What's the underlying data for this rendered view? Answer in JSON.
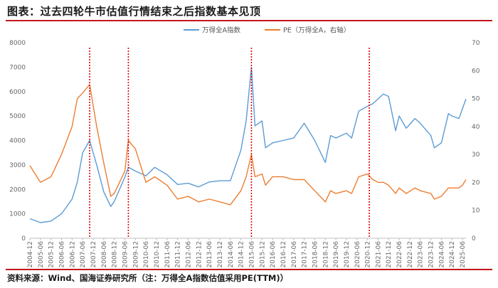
{
  "title": "图表：过去四轮牛市估值行情结束之后指数基本见顶",
  "source": "资料来源：Wind、国海证券研究所（注：万得全A指数估值采用PE(TTM)）",
  "chart_data": {
    "type": "line",
    "legend_position": "top-center",
    "grid": false,
    "series": [
      {
        "name": "万得全A指数",
        "axis": "left",
        "color": "#5b9bd5",
        "points": [
          [
            "2004-12",
            800
          ],
          [
            "2005-06",
            640
          ],
          [
            "2005-12",
            700
          ],
          [
            "2006-06",
            1000
          ],
          [
            "2006-12",
            1600
          ],
          [
            "2007-03",
            2300
          ],
          [
            "2007-06",
            3500
          ],
          [
            "2007-10",
            4000
          ],
          [
            "2008-02",
            3000
          ],
          [
            "2008-06",
            1900
          ],
          [
            "2008-10",
            1300
          ],
          [
            "2008-12",
            1500
          ],
          [
            "2009-06",
            2500
          ],
          [
            "2009-08",
            2900
          ],
          [
            "2009-12",
            2750
          ],
          [
            "2010-06",
            2550
          ],
          [
            "2010-11",
            2900
          ],
          [
            "2011-06",
            2600
          ],
          [
            "2011-12",
            2200
          ],
          [
            "2012-06",
            2250
          ],
          [
            "2012-12",
            2100
          ],
          [
            "2013-06",
            2300
          ],
          [
            "2013-12",
            2350
          ],
          [
            "2014-06",
            2350
          ],
          [
            "2014-12",
            3600
          ],
          [
            "2015-03",
            4800
          ],
          [
            "2015-06",
            7000
          ],
          [
            "2015-08",
            4600
          ],
          [
            "2015-12",
            4800
          ],
          [
            "2016-02",
            3700
          ],
          [
            "2016-06",
            3900
          ],
          [
            "2016-12",
            4000
          ],
          [
            "2017-06",
            4100
          ],
          [
            "2017-12",
            4700
          ],
          [
            "2018-06",
            4000
          ],
          [
            "2018-12",
            3100
          ],
          [
            "2019-03",
            4200
          ],
          [
            "2019-06",
            4100
          ],
          [
            "2019-12",
            4300
          ],
          [
            "2020-03",
            4100
          ],
          [
            "2020-07",
            5200
          ],
          [
            "2020-12",
            5400
          ],
          [
            "2021-03",
            5500
          ],
          [
            "2021-06",
            5700
          ],
          [
            "2021-09",
            5900
          ],
          [
            "2021-12",
            5800
          ],
          [
            "2022-04",
            4400
          ],
          [
            "2022-06",
            5000
          ],
          [
            "2022-10",
            4500
          ],
          [
            "2023-03",
            4900
          ],
          [
            "2023-06",
            4700
          ],
          [
            "2023-12",
            4200
          ],
          [
            "2024-02",
            3700
          ],
          [
            "2024-06",
            3900
          ],
          [
            "2024-10",
            5100
          ],
          [
            "2024-12",
            5000
          ],
          [
            "2025-04",
            4900
          ],
          [
            "2025-06",
            5300
          ],
          [
            "2025-08",
            5700
          ]
        ]
      },
      {
        "name": "PE（万得全A，右轴）",
        "axis": "right",
        "color": "#ed7d31",
        "points": [
          [
            "2004-12",
            26
          ],
          [
            "2005-06",
            20
          ],
          [
            "2005-12",
            22
          ],
          [
            "2006-06",
            30
          ],
          [
            "2006-12",
            40
          ],
          [
            "2007-03",
            50
          ],
          [
            "2007-06",
            52
          ],
          [
            "2007-10",
            55
          ],
          [
            "2008-02",
            40
          ],
          [
            "2008-06",
            27
          ],
          [
            "2008-10",
            15
          ],
          [
            "2008-12",
            16
          ],
          [
            "2009-06",
            24
          ],
          [
            "2009-08",
            35
          ],
          [
            "2009-12",
            32
          ],
          [
            "2010-06",
            20
          ],
          [
            "2010-11",
            22
          ],
          [
            "2011-06",
            19
          ],
          [
            "2011-12",
            14
          ],
          [
            "2012-06",
            15
          ],
          [
            "2012-12",
            13
          ],
          [
            "2013-06",
            14
          ],
          [
            "2013-12",
            13
          ],
          [
            "2014-06",
            12
          ],
          [
            "2014-12",
            17
          ],
          [
            "2015-03",
            22
          ],
          [
            "2015-06",
            30
          ],
          [
            "2015-08",
            22
          ],
          [
            "2015-12",
            23
          ],
          [
            "2016-02",
            19
          ],
          [
            "2016-06",
            22
          ],
          [
            "2016-12",
            22
          ],
          [
            "2017-06",
            21
          ],
          [
            "2017-12",
            21
          ],
          [
            "2018-06",
            17
          ],
          [
            "2018-12",
            13
          ],
          [
            "2019-03",
            17
          ],
          [
            "2019-06",
            16
          ],
          [
            "2019-12",
            17
          ],
          [
            "2020-03",
            16
          ],
          [
            "2020-07",
            22
          ],
          [
            "2020-12",
            23
          ],
          [
            "2021-03",
            21
          ],
          [
            "2021-06",
            20
          ],
          [
            "2021-09",
            20
          ],
          [
            "2021-12",
            19
          ],
          [
            "2022-04",
            16
          ],
          [
            "2022-06",
            18
          ],
          [
            "2022-10",
            16
          ],
          [
            "2023-03",
            18
          ],
          [
            "2023-06",
            17
          ],
          [
            "2023-12",
            16
          ],
          [
            "2024-02",
            14
          ],
          [
            "2024-06",
            15
          ],
          [
            "2024-10",
            18
          ],
          [
            "2024-12",
            18
          ],
          [
            "2025-04",
            18
          ],
          [
            "2025-06",
            19
          ],
          [
            "2025-08",
            21
          ]
        ]
      }
    ],
    "y_left": {
      "min": 0,
      "max": 8000,
      "ticks": [
        0,
        1000,
        2000,
        3000,
        4000,
        5000,
        6000,
        7000,
        8000
      ]
    },
    "y_right": {
      "min": 0,
      "max": 70,
      "ticks": [
        0,
        10,
        20,
        30,
        40,
        50,
        60,
        70
      ]
    },
    "x_range": [
      "2004-12",
      "2025-08"
    ],
    "x_ticks": [
      "2004-12",
      "2005-06",
      "2005-12",
      "2006-06",
      "2006-12",
      "2007-06",
      "2007-12",
      "2008-06",
      "2008-12",
      "2009-06",
      "2009-12",
      "2010-06",
      "2010-12",
      "2011-06",
      "2011-12",
      "2012-06",
      "2012-12",
      "2013-06",
      "2013-12",
      "2014-06",
      "2014-12",
      "2015-06",
      "2015-12",
      "2016-06",
      "2016-12",
      "2017-06",
      "2017-12",
      "2018-06",
      "2018-12",
      "2019-06",
      "2019-12",
      "2020-06",
      "2020-12",
      "2021-06",
      "2021-12",
      "2022-06",
      "2022-12",
      "2023-06",
      "2023-12",
      "2024-06",
      "2024-12",
      "2025-06"
    ],
    "markers": [
      {
        "date": "2007-10",
        "color": "#e00000",
        "style": "dotted"
      },
      {
        "date": "2009-08",
        "color": "#e00000",
        "style": "dotted"
      },
      {
        "date": "2015-06",
        "color": "#e00000",
        "style": "dotted"
      },
      {
        "date": "2021-01",
        "color": "#e00000",
        "style": "dotted"
      }
    ]
  }
}
